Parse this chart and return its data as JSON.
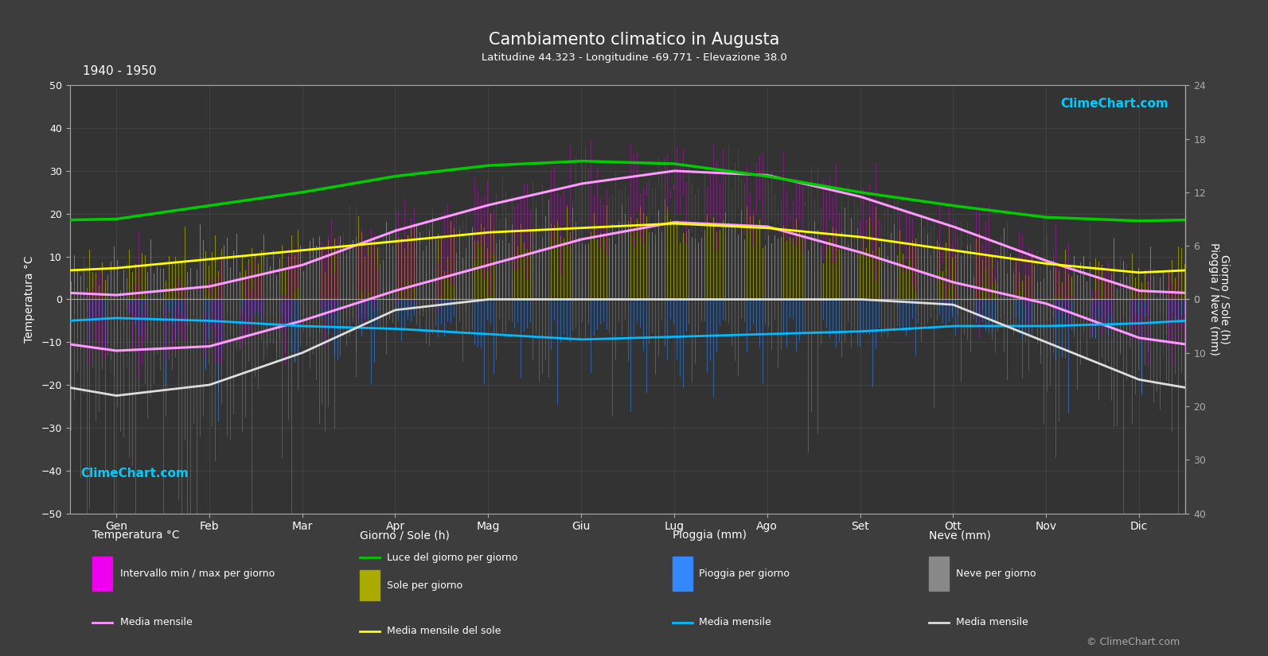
{
  "title": "Cambiamento climatico in Augusta",
  "subtitle": "Latitudine 44.323 - Longitudine -69.771 - Elevazione 38.0",
  "year_range": "1940 - 1950",
  "background_color": "#3d3d3d",
  "plot_bg_color": "#333333",
  "months_it": [
    "Gen",
    "Feb",
    "Mar",
    "Apr",
    "Mag",
    "Giu",
    "Lug",
    "Ago",
    "Set",
    "Ott",
    "Nov",
    "Dic"
  ],
  "temp_ylim": [
    -50,
    50
  ],
  "temp_ticks": [
    -50,
    -40,
    -30,
    -20,
    -10,
    0,
    10,
    20,
    30,
    40,
    50
  ],
  "sun_ticks_right": [
    0,
    6,
    12,
    18,
    24
  ],
  "precip_ticks_right": [
    0,
    10,
    20,
    30,
    40
  ],
  "temp_mean_max": [
    1,
    3,
    8,
    16,
    22,
    27,
    30,
    29,
    24,
    17,
    9,
    2
  ],
  "temp_mean_min": [
    -12,
    -11,
    -5,
    2,
    8,
    14,
    18,
    17,
    11,
    4,
    -1,
    -9
  ],
  "daylight_hours": [
    9.0,
    10.5,
    12.0,
    13.8,
    15.0,
    15.5,
    15.2,
    13.8,
    12.0,
    10.5,
    9.2,
    8.8
  ],
  "sunshine_mean": [
    3.5,
    4.5,
    5.5,
    6.5,
    7.5,
    8.0,
    8.5,
    8.0,
    7.0,
    5.5,
    4.0,
    3.0
  ],
  "rain_mean_mm": [
    3.5,
    4.0,
    5.0,
    5.5,
    6.5,
    7.5,
    7.0,
    6.5,
    6.0,
    5.0,
    5.0,
    4.5
  ],
  "snow_mean_mm": [
    18,
    16,
    10,
    2,
    0,
    0,
    0,
    0,
    0,
    1,
    8,
    15
  ],
  "colors": {
    "temp_bar_magenta": "#ee00ee",
    "temp_mean_pink": "#ff99ff",
    "daylight_green": "#00cc00",
    "sunshine_bar": "#aaaa00",
    "sunshine_mean_yellow": "#ffff00",
    "rain_bar": "#3388ff",
    "rain_mean_cyan": "#00bbff",
    "snow_bar": "#888888",
    "snow_mean_white": "#dddddd",
    "grid_color": "#555555",
    "axis_color": "#aaaaaa",
    "text_color": "#ffffff",
    "logo_cyan": "#00ccff"
  },
  "sun_scale": 2.0833,
  "precip_scale": 1.25
}
